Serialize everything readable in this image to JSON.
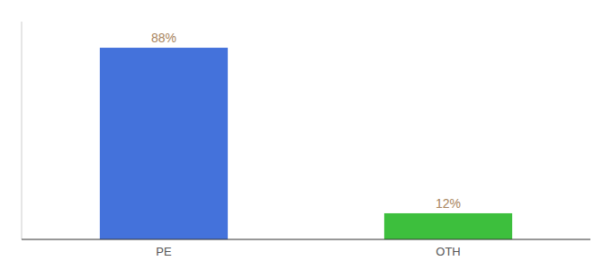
{
  "chart_data": {
    "type": "bar",
    "categories": [
      "PE",
      "OTH"
    ],
    "values": [
      88,
      12
    ],
    "value_labels": [
      "88%",
      "12%"
    ],
    "colors": [
      "#4472db",
      "#3dbf3d"
    ],
    "ylim": [
      0,
      100
    ],
    "data_labels": true,
    "tick_labels": "x"
  }
}
